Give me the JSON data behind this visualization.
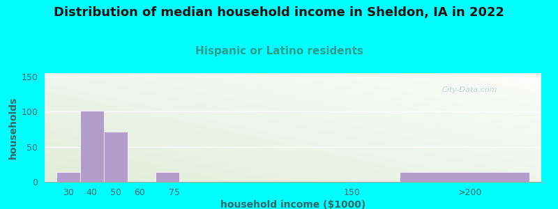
{
  "title": "Distribution of median household income in Sheldon, IA in 2022",
  "subtitle": "Hispanic or Latino residents",
  "xlabel": "household income ($1000)",
  "ylabel": "households",
  "title_fontsize": 13,
  "subtitle_fontsize": 11,
  "subtitle_color": "#2a9d8f",
  "ylabel_color": "#336666",
  "xlabel_color": "#336666",
  "background_outer": "#00ffff",
  "bar_color": "#b39dcc",
  "watermark": "City-Data.com",
  "bar_lefts": [
    25,
    35,
    45,
    55,
    67,
    125,
    170
  ],
  "bar_widths": [
    10,
    10,
    10,
    8,
    10,
    10,
    55
  ],
  "bar_heights": [
    14,
    101,
    72,
    0,
    14,
    0,
    14
  ],
  "xlim": [
    20,
    230
  ],
  "ylim": [
    0,
    155
  ],
  "yticks": [
    0,
    50,
    100,
    150
  ],
  "xtick_positions": [
    30,
    40,
    50,
    60,
    75,
    150,
    200
  ],
  "xtick_labels": [
    "30",
    "40",
    "50",
    "60",
    "75",
    "150",
    ">200"
  ],
  "tick_color": "#336666"
}
